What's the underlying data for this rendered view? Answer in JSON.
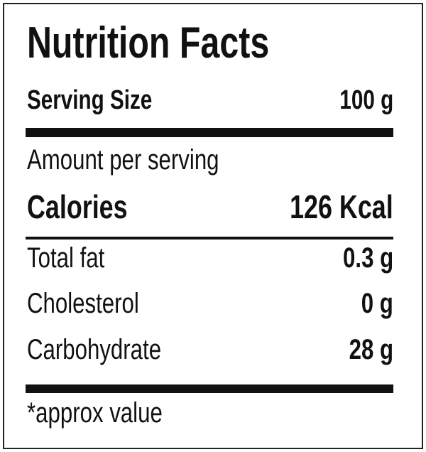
{
  "label": {
    "title": "Nutrition Facts",
    "serving": {
      "label": "Serving Size",
      "value": "100 g"
    },
    "amount_heading": "Amount per serving",
    "calories": {
      "label": "Calories",
      "value": "126 Kcal"
    },
    "rows": [
      {
        "label": "Total fat",
        "value": "0.3 g"
      },
      {
        "label": "Cholesterol",
        "value": "0 g"
      },
      {
        "label": "Carbohydrate",
        "value": "28 g"
      }
    ],
    "footnote": "*approx value"
  }
}
